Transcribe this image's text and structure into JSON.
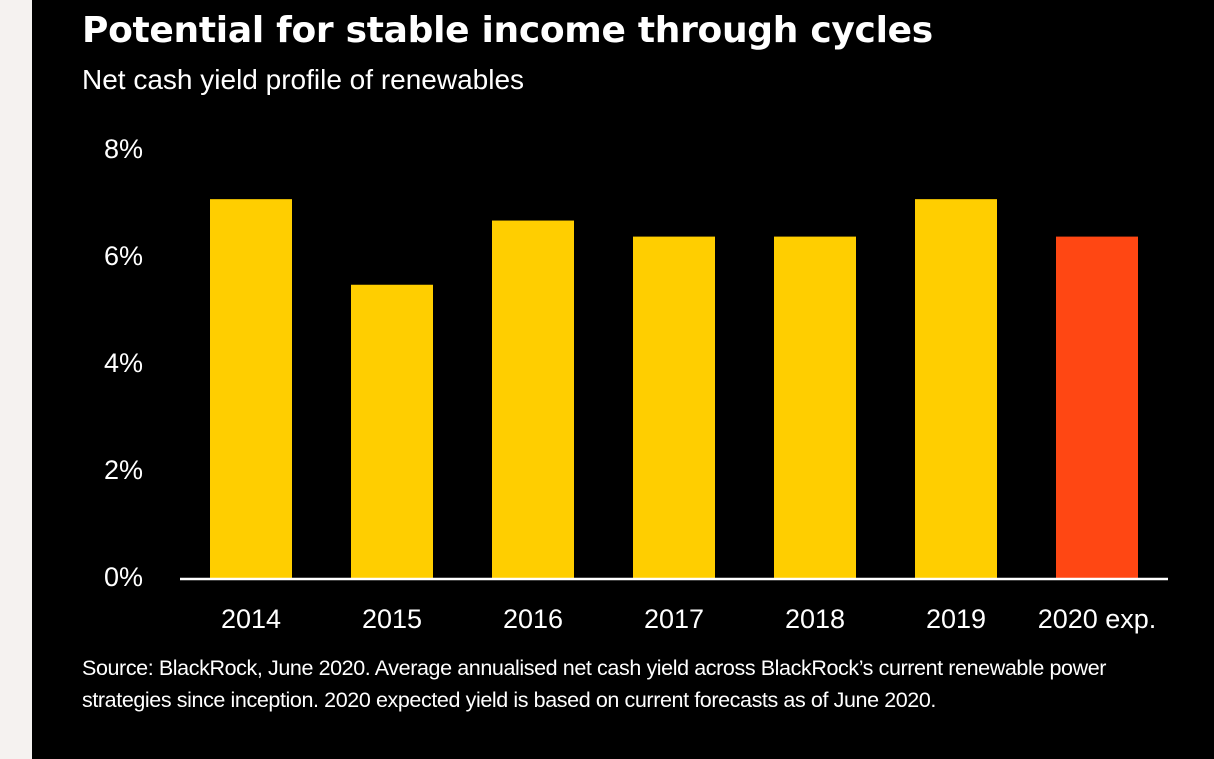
{
  "chart_data": {
    "type": "bar",
    "title": "Potential for stable income through cycles",
    "subtitle": "Net cash yield profile of renewables",
    "categories": [
      "2014",
      "2015",
      "2016",
      "2017",
      "2018",
      "2019",
      "2020 exp."
    ],
    "values": [
      7.1,
      5.5,
      6.7,
      6.4,
      6.4,
      7.1,
      6.4
    ],
    "ylim": [
      0,
      8
    ],
    "yticks": [
      0,
      2,
      4,
      6,
      8
    ],
    "ytick_labels": [
      "0%",
      "2%",
      "4%",
      "6%",
      "8%"
    ],
    "grid": false,
    "legend": "none",
    "colors": {
      "actual": "#FFCE00",
      "expected": "#FF4713"
    },
    "source_note": "Source: BlackRock, June 2020. Average annualised net cash yield across BlackRock’s current renewable power strategies since inception. 2020 expected yield is based on current forecasts as of June 2020."
  }
}
